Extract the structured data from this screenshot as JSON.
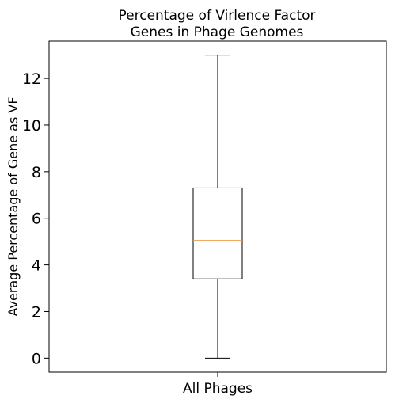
{
  "chart_data": {
    "type": "box",
    "title": [
      "Percentage of Virlence Factor",
      "Genes in Phage Genomes"
    ],
    "xlabel": "",
    "ylabel": "Average Percentage of Gene as VF",
    "categories": [
      "All Phages"
    ],
    "ylim": [
      -0.6,
      13.6
    ],
    "yticks": [
      0,
      2,
      4,
      6,
      8,
      10,
      12
    ],
    "boxes": [
      {
        "category": "All Phages",
        "min": 0,
        "q1": 3.4,
        "median": 5.05,
        "q3": 7.3,
        "max": 13.0
      }
    ],
    "grid": false,
    "colors": {
      "box": "#000000",
      "median": "#e8a04a",
      "whisker": "#000000"
    }
  }
}
